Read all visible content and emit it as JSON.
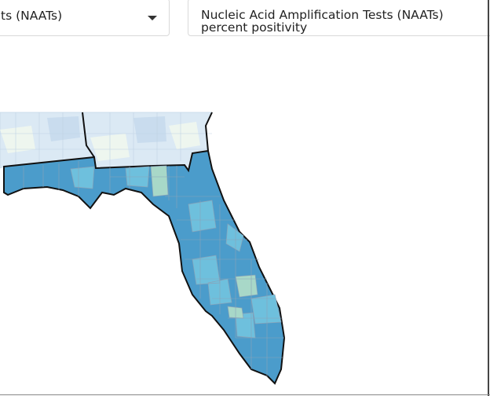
{
  "filters": {
    "metric_dropdown": "ts (NAATs)",
    "indicator_label": "Nucleic Acid Amplification Tests (NAATs) percent positivity"
  }
}
